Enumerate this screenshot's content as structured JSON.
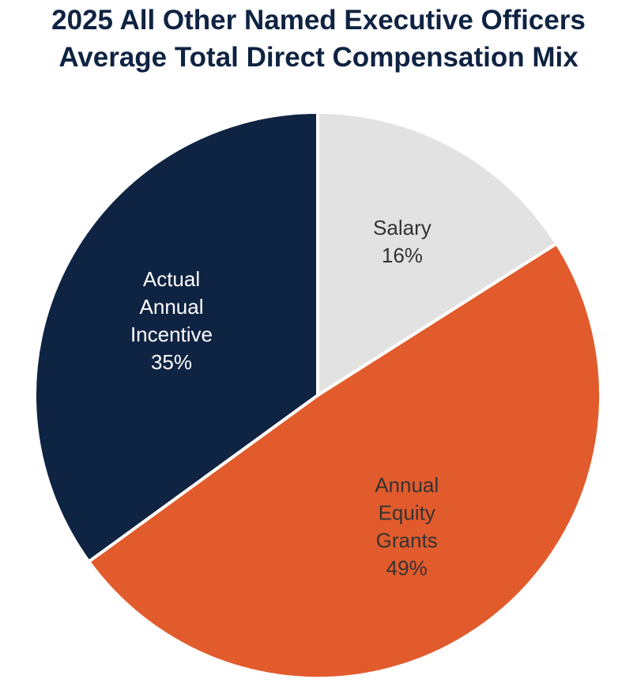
{
  "chart_data": {
    "type": "pie",
    "title_lines": [
      "2025 All Other Named Executive Officers",
      "Average Total Direct Compensation Mix"
    ],
    "slices": [
      {
        "key": "salary",
        "label_lines": [
          "Salary"
        ],
        "percent_label": "16%",
        "value": 16,
        "color": "#e2e2e3",
        "text_color": "#333333"
      },
      {
        "key": "equity",
        "label_lines": [
          "Annual",
          "Equity",
          "Grants"
        ],
        "percent_label": "49%",
        "value": 49,
        "color": "#e25b2c",
        "text_color": "#333333"
      },
      {
        "key": "incentive",
        "label_lines": [
          "Actual",
          "Annual",
          "Incentive"
        ],
        "percent_label": "35%",
        "value": 35,
        "color": "#0f2342",
        "text_color": "#ffffff"
      }
    ],
    "start": "12 o'clock",
    "direction": "clockwise"
  }
}
